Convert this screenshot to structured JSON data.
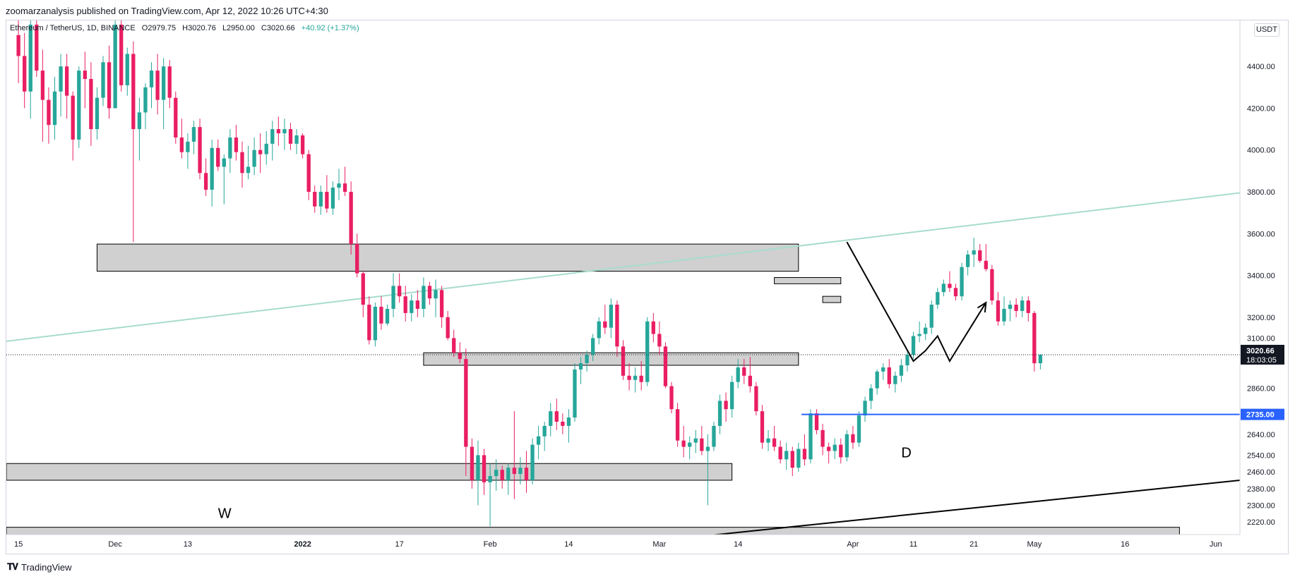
{
  "header": {
    "published_by": "zoomarzanalysis published on TradingView.com, Apr 12, 2022 10:26 UTC+4:30"
  },
  "legend": {
    "symbol": "Ethereum / TetherUS, 1D, BINANCE",
    "open": "O2979.75",
    "high": "H3020.76",
    "low": "L2950.00",
    "close": "C3020.66",
    "change": "+40.92 (+1.37%)"
  },
  "currency": "USDT",
  "brand": "TradingView",
  "colors": {
    "up": "#26a69a",
    "down": "#e91e63",
    "zone_fill": "#d0d0d0",
    "trendline": "#a8dccf",
    "level_line": "#2962ff",
    "price_label_bg": "#131722"
  },
  "chart_data": {
    "type": "candlestick",
    "symbol": "Ethereum / TetherUS",
    "timeframe": "1D",
    "exchange": "BINANCE",
    "y_axis_ticks": [
      4400,
      4200,
      4000,
      3800,
      3600,
      3400,
      3200,
      3100,
      2860,
      2640,
      2540,
      2460,
      2380,
      2300,
      2220
    ],
    "x_axis_ticks": [
      "15",
      "Dec",
      "13",
      "2022",
      "17",
      "Feb",
      "14",
      "Mar",
      "14",
      "Apr",
      "11",
      "21",
      "May",
      "16",
      "Jun"
    ],
    "x_tick_days": [
      0,
      16,
      28,
      47,
      63,
      78,
      91,
      106,
      119,
      138,
      148,
      158,
      168,
      183,
      198
    ],
    "ylim": [
      2160,
      4620
    ],
    "xlim": [
      -2,
      202
    ],
    "last_price": "3020.66",
    "countdown": "18:03:05",
    "level_label": "2735.00",
    "level_value": 2735,
    "zones": [
      {
        "start": 13,
        "end": 129,
        "low": 3420,
        "high": 3550
      },
      {
        "start": 67,
        "end": 129,
        "low": 2970,
        "high": 3030
      },
      {
        "start": 125,
        "end": 136,
        "low": 3360,
        "high": 3390
      },
      {
        "start": 133,
        "end": 136,
        "low": 3270,
        "high": 3300
      },
      {
        "start": -2,
        "end": 118,
        "low": 2420,
        "high": 2500
      },
      {
        "start": -2,
        "end": 192,
        "low": 2140,
        "high": 2195
      }
    ],
    "trendlines": [
      {
        "points": [
          [
            -2,
            3085
          ],
          [
            202,
            3795
          ]
        ],
        "color": "trendline"
      },
      {
        "points": [
          [
            89,
            2080
          ],
          [
            202,
            2420
          ]
        ],
        "color": "black"
      }
    ],
    "projection_path": [
      [
        137,
        3560
      ],
      [
        148,
        2990
      ],
      [
        150,
        3040
      ],
      [
        152,
        3110
      ],
      [
        154,
        2990
      ],
      [
        160,
        3270
      ]
    ],
    "annotations": [
      {
        "text": "W",
        "x": 33,
        "y": 2240
      },
      {
        "text": "D",
        "x": 146,
        "y": 2530
      }
    ],
    "candles": [
      [
        4550,
        4650,
        4320,
        4450
      ],
      [
        4450,
        4560,
        4200,
        4280
      ],
      [
        4280,
        4620,
        4150,
        4600
      ],
      [
        4600,
        4700,
        4350,
        4380
      ],
      [
        4380,
        4480,
        4040,
        4240
      ],
      [
        4240,
        4300,
        4030,
        4120
      ],
      [
        4120,
        4350,
        4050,
        4280
      ],
      [
        4280,
        4460,
        4160,
        4400
      ],
      [
        4400,
        4460,
        4150,
        4260
      ],
      [
        4260,
        4280,
        3950,
        4050
      ],
      [
        4050,
        4400,
        4010,
        4380
      ],
      [
        4380,
        4470,
        4200,
        4340
      ],
      [
        4340,
        4420,
        4020,
        4100
      ],
      [
        4100,
        4300,
        4050,
        4250
      ],
      [
        4250,
        4450,
        4210,
        4420
      ],
      [
        4420,
        4500,
        4150,
        4200
      ],
      [
        4200,
        4630,
        4200,
        4600
      ],
      [
        4600,
        4720,
        4280,
        4310
      ],
      [
        4310,
        4490,
        4260,
        4460
      ],
      [
        4460,
        4520,
        3560,
        4100
      ],
      [
        4100,
        4250,
        3950,
        4180
      ],
      [
        4180,
        4320,
        4100,
        4300
      ],
      [
        4300,
        4420,
        4200,
        4380
      ],
      [
        4380,
        4460,
        4170,
        4240
      ],
      [
        4240,
        4440,
        4100,
        4400
      ],
      [
        4400,
        4430,
        4200,
        4250
      ],
      [
        4250,
        4280,
        4030,
        4060
      ],
      [
        4060,
        4150,
        3960,
        3990
      ],
      [
        3990,
        4080,
        3910,
        4040
      ],
      [
        4040,
        4140,
        3980,
        4110
      ],
      [
        4110,
        4150,
        3860,
        3890
      ],
      [
        3890,
        3960,
        3780,
        3810
      ],
      [
        3810,
        4050,
        3730,
        4010
      ],
      [
        4010,
        4050,
        3900,
        3920
      ],
      [
        3920,
        3980,
        3740,
        3960
      ],
      [
        3960,
        4100,
        3890,
        4060
      ],
      [
        4060,
        4120,
        3950,
        3990
      ],
      [
        3990,
        4040,
        3820,
        3890
      ],
      [
        3890,
        4020,
        3860,
        3920
      ],
      [
        3920,
        4060,
        3880,
        4000
      ],
      [
        4000,
        4080,
        3890,
        3980
      ],
      [
        3980,
        4090,
        3930,
        4030
      ],
      [
        4030,
        4140,
        3950,
        4100
      ],
      [
        4100,
        4160,
        4020,
        4080
      ],
      [
        4080,
        4150,
        4000,
        4100
      ],
      [
        4100,
        4130,
        4000,
        4030
      ],
      [
        4030,
        4100,
        3980,
        4070
      ],
      [
        4070,
        4080,
        3960,
        3980
      ],
      [
        3980,
        4000,
        3760,
        3800
      ],
      [
        3800,
        3830,
        3700,
        3730
      ],
      [
        3730,
        3830,
        3690,
        3800
      ],
      [
        3800,
        3880,
        3700,
        3720
      ],
      [
        3720,
        3850,
        3690,
        3820
      ],
      [
        3820,
        3910,
        3760,
        3840
      ],
      [
        3840,
        3920,
        3780,
        3800
      ],
      [
        3800,
        3850,
        3500,
        3550
      ],
      [
        3550,
        3600,
        3390,
        3410
      ],
      [
        3410,
        3420,
        3200,
        3260
      ],
      [
        3260,
        3300,
        3070,
        3090
      ],
      [
        3090,
        3270,
        3060,
        3250
      ],
      [
        3250,
        3300,
        3140,
        3170
      ],
      [
        3170,
        3260,
        3160,
        3240
      ],
      [
        3240,
        3410,
        3200,
        3350
      ],
      [
        3350,
        3410,
        3270,
        3300
      ],
      [
        3300,
        3350,
        3180,
        3220
      ],
      [
        3220,
        3310,
        3180,
        3280
      ],
      [
        3280,
        3330,
        3200,
        3240
      ],
      [
        3240,
        3390,
        3200,
        3350
      ],
      [
        3350,
        3370,
        3260,
        3290
      ],
      [
        3290,
        3380,
        3200,
        3330
      ],
      [
        3330,
        3350,
        3150,
        3200
      ],
      [
        3200,
        3230,
        3090,
        3100
      ],
      [
        3100,
        3140,
        3010,
        3030
      ],
      [
        3030,
        3080,
        2980,
        3000
      ],
      [
        3000,
        3050,
        2440,
        2580
      ],
      [
        2580,
        2620,
        2380,
        2420
      ],
      [
        2420,
        2610,
        2300,
        2540
      ],
      [
        2540,
        2570,
        2350,
        2410
      ],
      [
        2410,
        2500,
        2200,
        2440
      ],
      [
        2440,
        2520,
        2370,
        2470
      ],
      [
        2470,
        2490,
        2380,
        2420
      ],
      [
        2420,
        2500,
        2350,
        2480
      ],
      [
        2480,
        2750,
        2330,
        2450
      ],
      [
        2450,
        2530,
        2400,
        2480
      ],
      [
        2480,
        2560,
        2360,
        2420
      ],
      [
        2420,
        2620,
        2400,
        2590
      ],
      [
        2590,
        2680,
        2520,
        2630
      ],
      [
        2630,
        2700,
        2560,
        2680
      ],
      [
        2680,
        2790,
        2630,
        2750
      ],
      [
        2750,
        2810,
        2660,
        2700
      ],
      [
        2700,
        2740,
        2640,
        2680
      ],
      [
        2680,
        2760,
        2600,
        2720
      ],
      [
        2720,
        2980,
        2700,
        2950
      ],
      [
        2950,
        3010,
        2880,
        2980
      ],
      [
        2980,
        3040,
        2940,
        3020
      ],
      [
        3020,
        3120,
        2990,
        3100
      ],
      [
        3100,
        3200,
        3070,
        3180
      ],
      [
        3180,
        3260,
        3120,
        3150
      ],
      [
        3150,
        3290,
        3100,
        3260
      ],
      [
        3260,
        3280,
        3010,
        3060
      ],
      [
        3060,
        3090,
        2900,
        2920
      ],
      [
        2920,
        2980,
        2850,
        2900
      ],
      [
        2900,
        2960,
        2840,
        2920
      ],
      [
        2920,
        2990,
        2850,
        2890
      ],
      [
        2890,
        3200,
        2870,
        3180
      ],
      [
        3180,
        3220,
        3080,
        3120
      ],
      [
        3120,
        3180,
        3020,
        3060
      ],
      [
        3060,
        3080,
        2860,
        2870
      ],
      [
        2870,
        2890,
        2740,
        2760
      ],
      [
        2760,
        2790,
        2580,
        2610
      ],
      [
        2610,
        2680,
        2530,
        2580
      ],
      [
        2580,
        2630,
        2520,
        2600
      ],
      [
        2600,
        2660,
        2550,
        2620
      ],
      [
        2620,
        2680,
        2540,
        2560
      ],
      [
        2560,
        2640,
        2300,
        2580
      ],
      [
        2580,
        2700,
        2560,
        2680
      ],
      [
        2680,
        2830,
        2640,
        2800
      ],
      [
        2800,
        2840,
        2700,
        2760
      ],
      [
        2760,
        2920,
        2720,
        2890
      ],
      [
        2890,
        3000,
        2860,
        2960
      ],
      [
        2960,
        3000,
        2880,
        2920
      ],
      [
        2920,
        3010,
        2840,
        2870
      ],
      [
        2870,
        2890,
        2730,
        2750
      ],
      [
        2750,
        2780,
        2570,
        2600
      ],
      [
        2600,
        2660,
        2560,
        2620
      ],
      [
        2620,
        2680,
        2560,
        2580
      ],
      [
        2580,
        2610,
        2500,
        2520
      ],
      [
        2520,
        2600,
        2470,
        2560
      ],
      [
        2560,
        2580,
        2440,
        2480
      ],
      [
        2480,
        2600,
        2460,
        2570
      ],
      [
        2570,
        2640,
        2490,
        2520
      ],
      [
        2520,
        2760,
        2500,
        2740
      ],
      [
        2740,
        2760,
        2640,
        2660
      ],
      [
        2660,
        2690,
        2540,
        2580
      ],
      [
        2580,
        2600,
        2500,
        2560
      ],
      [
        2560,
        2620,
        2520,
        2590
      ],
      [
        2590,
        2620,
        2500,
        2530
      ],
      [
        2530,
        2660,
        2510,
        2640
      ],
      [
        2640,
        2680,
        2570,
        2600
      ],
      [
        2600,
        2750,
        2580,
        2730
      ],
      [
        2730,
        2820,
        2700,
        2800
      ],
      [
        2800,
        2880,
        2760,
        2860
      ],
      [
        2860,
        2950,
        2830,
        2940
      ],
      [
        2940,
        2980,
        2900,
        2960
      ],
      [
        2960,
        3000,
        2860,
        2880
      ],
      [
        2880,
        2940,
        2840,
        2920
      ],
      [
        2920,
        3000,
        2890,
        2970
      ],
      [
        2970,
        3040,
        2940,
        3020
      ],
      [
        3020,
        3130,
        3000,
        3110
      ],
      [
        3110,
        3180,
        3080,
        3120
      ],
      [
        3120,
        3170,
        3090,
        3150
      ],
      [
        3150,
        3280,
        3120,
        3260
      ],
      [
        3260,
        3340,
        3240,
        3320
      ],
      [
        3320,
        3380,
        3300,
        3360
      ],
      [
        3360,
        3420,
        3320,
        3340
      ],
      [
        3340,
        3360,
        3280,
        3300
      ],
      [
        3300,
        3460,
        3280,
        3440
      ],
      [
        3440,
        3520,
        3400,
        3500
      ],
      [
        3500,
        3580,
        3440,
        3520
      ],
      [
        3520,
        3550,
        3460,
        3470
      ],
      [
        3470,
        3550,
        3420,
        3430
      ],
      [
        3430,
        3450,
        3260,
        3280
      ],
      [
        3280,
        3320,
        3160,
        3180
      ],
      [
        3180,
        3300,
        3160,
        3240
      ],
      [
        3240,
        3280,
        3180,
        3260
      ],
      [
        3260,
        3290,
        3200,
        3230
      ],
      [
        3230,
        3300,
        3200,
        3280
      ],
      [
        3280,
        3300,
        3180,
        3220
      ],
      [
        3220,
        3230,
        2940,
        2979.75
      ],
      [
        2979.75,
        3020.76,
        2950,
        3020.66
      ]
    ]
  }
}
